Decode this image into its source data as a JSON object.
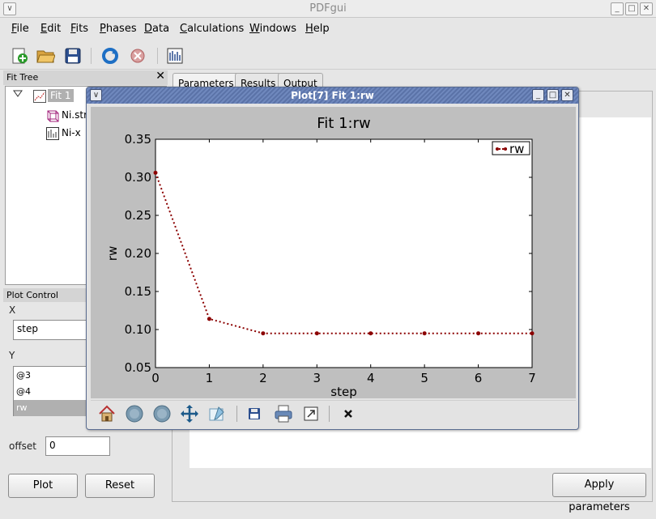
{
  "app": {
    "title": "PDFgui",
    "window_buttons": {
      "minimize": "_",
      "maximize": "□",
      "close": "✕"
    },
    "collapse_glyph": "∨"
  },
  "menu": [
    "File",
    "Edit",
    "Fits",
    "Phases",
    "Data",
    "Calculations",
    "Windows",
    "Help"
  ],
  "toolbar": [
    "new-fit-icon",
    "open-folder-icon",
    "save-icon",
    "run-icon",
    "stop-icon",
    "plot-icon"
  ],
  "fit_tree": {
    "header": "Fit Tree",
    "close": "✕",
    "nodes": [
      {
        "label": "Fit 1",
        "selected": true
      },
      {
        "label": "Ni.stru"
      },
      {
        "label": "Ni-x"
      }
    ]
  },
  "plot_control": {
    "header": "Plot Control",
    "x_label": "X",
    "x_value": "step",
    "y_label": "Y",
    "y_items": [
      {
        "label": "@3",
        "selected": false
      },
      {
        "label": "@4",
        "selected": false
      },
      {
        "label": "rw",
        "selected": true
      }
    ],
    "offset_label": "offset",
    "offset_value": "0",
    "plot_button": "Plot",
    "reset_button": "Reset"
  },
  "tabs": [
    {
      "label": "Parameters",
      "active": true
    },
    {
      "label": "Results",
      "active": false
    },
    {
      "label": "Output",
      "active": false
    }
  ],
  "apply_button": "Apply parameters",
  "plot_window": {
    "title": "Plot[7]  Fit 1:rw",
    "toolbar": [
      "home-icon",
      "back-icon",
      "forward-icon",
      "pan-icon",
      "configure-subplots-icon",
      "save-figure-icon",
      "print-icon",
      "export-icon",
      "close-plot-icon"
    ]
  },
  "chart_data": {
    "type": "line",
    "title": "Fit 1:rw",
    "xlabel": "step",
    "ylabel": "rw",
    "xlim": [
      0,
      7
    ],
    "ylim": [
      0.05,
      0.35
    ],
    "xticks": [
      0,
      1,
      2,
      3,
      4,
      5,
      6,
      7
    ],
    "yticks": [
      0.05,
      0.1,
      0.15,
      0.2,
      0.25,
      0.3,
      0.35
    ],
    "ytick_labels": [
      "0.05",
      "0.10",
      "0.15",
      "0.20",
      "0.25",
      "0.30",
      "0.35"
    ],
    "grid": false,
    "legend": "top-right",
    "color": "#8b0000",
    "series": [
      {
        "name": "rw",
        "x": [
          0,
          1,
          2,
          3,
          4,
          5,
          6,
          7
        ],
        "y": [
          0.306,
          0.114,
          0.095,
          0.095,
          0.095,
          0.095,
          0.095,
          0.095
        ]
      }
    ]
  }
}
